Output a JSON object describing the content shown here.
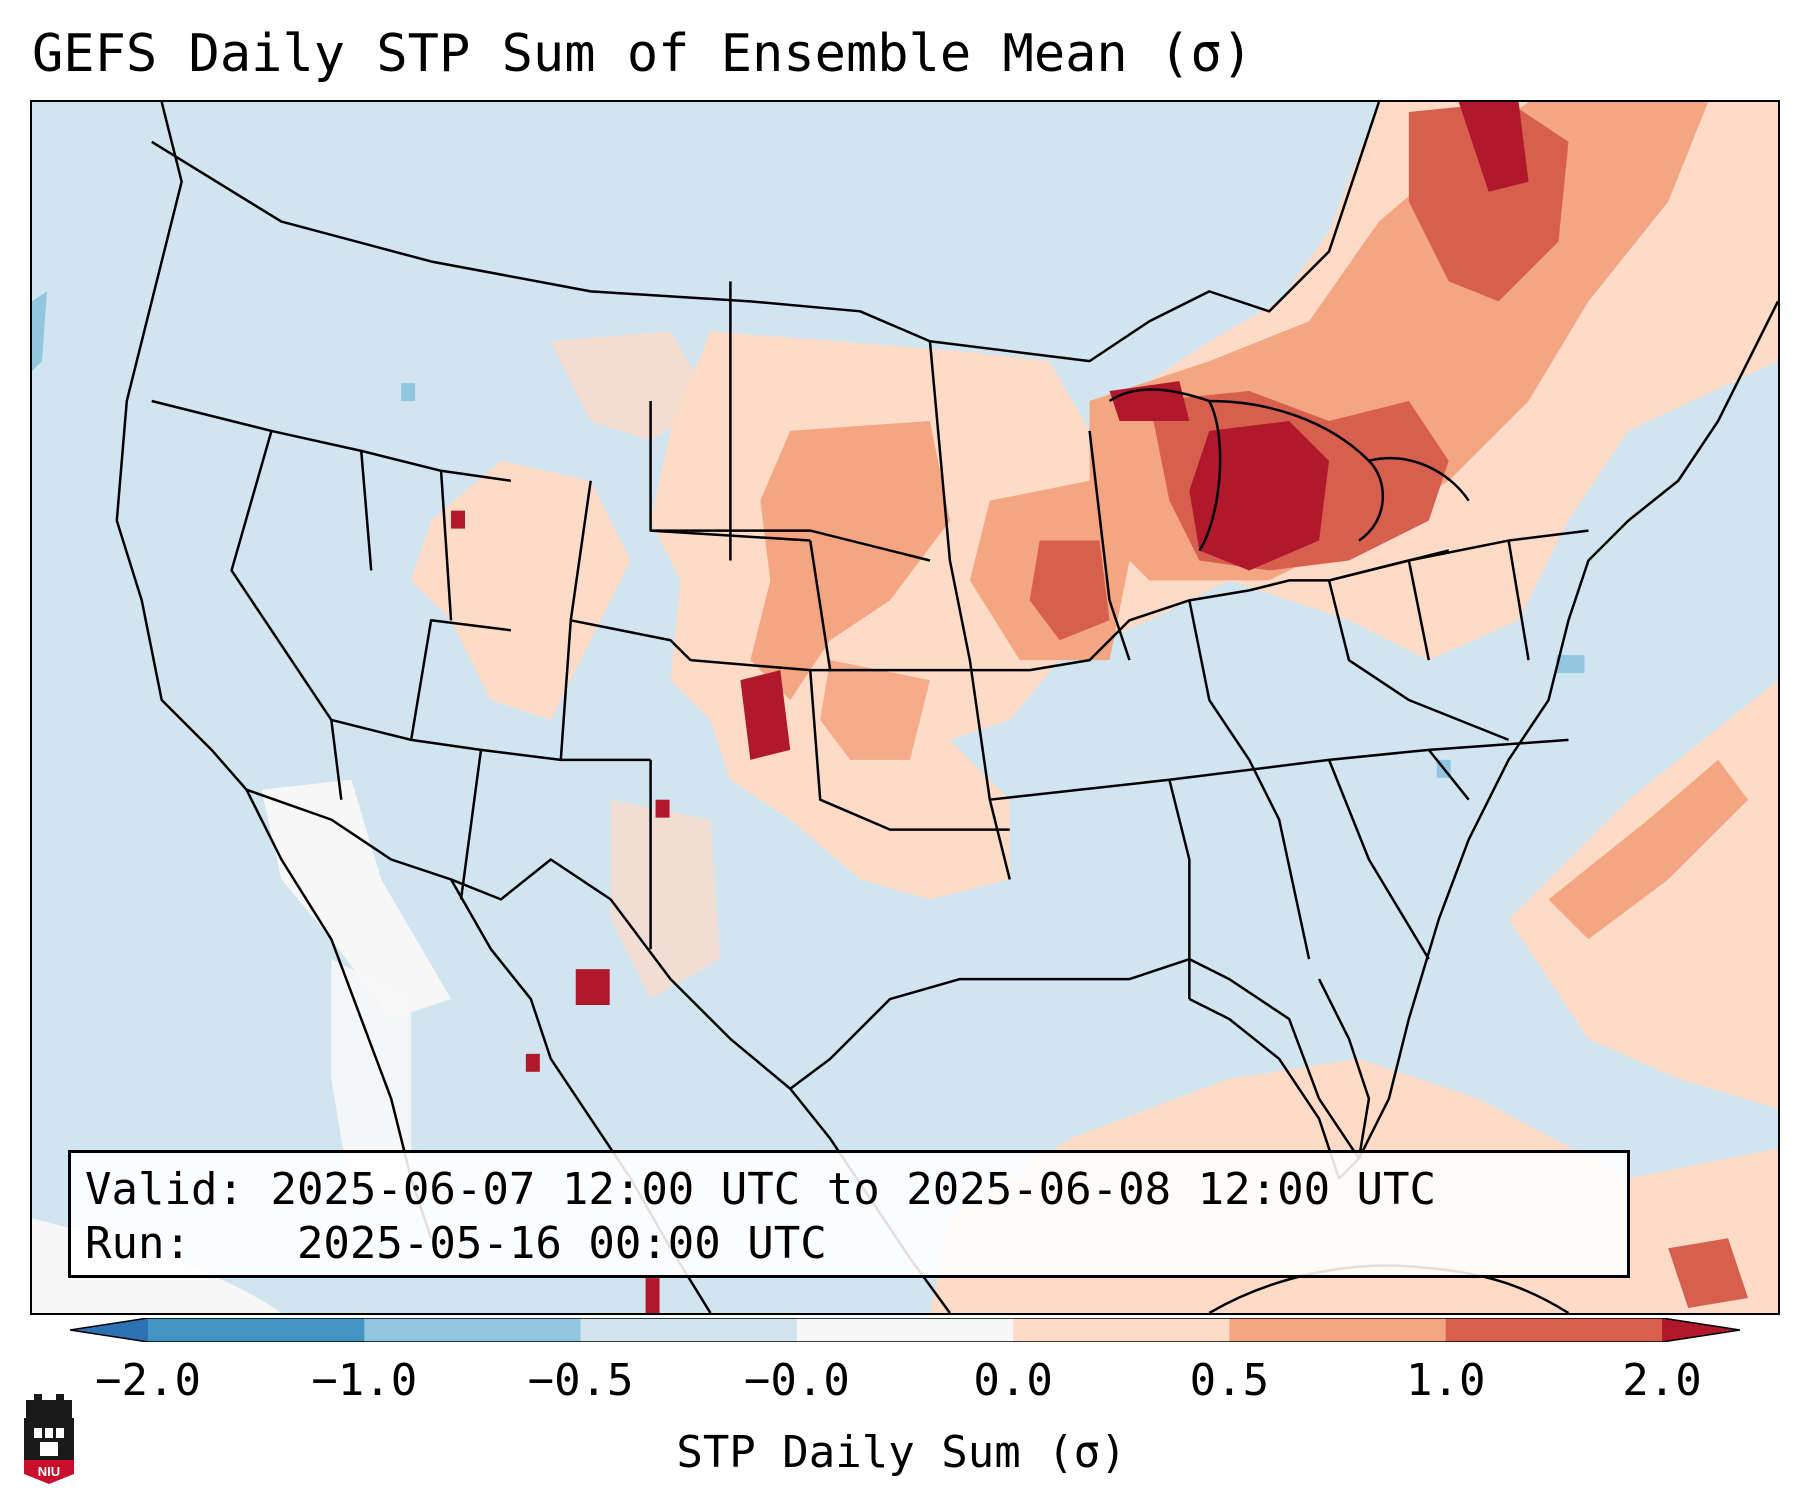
{
  "title": "GEFS Daily STP Sum of Ensemble Mean (σ)",
  "info": {
    "valid_label": "Valid:",
    "valid_value": "2025-06-07 12:00 UTC to 2025-06-08 12:00 UTC",
    "run_label": "Run:",
    "run_value": "2025-05-16 00:00 UTC"
  },
  "colorbar": {
    "label": "STP Daily Sum (σ)",
    "ticks": [
      "−2.0",
      "−1.0",
      "−0.5",
      "−0.0",
      "0.0",
      "0.5",
      "1.0",
      "2.0"
    ],
    "bins": [
      {
        "from": -3.0,
        "to": -2.0,
        "color": "#2c72b3"
      },
      {
        "from": -2.0,
        "to": -1.0,
        "color": "#4393c3"
      },
      {
        "from": -1.0,
        "to": -0.5,
        "color": "#92c5de"
      },
      {
        "from": -0.5,
        "to": -0.0,
        "color": "#d1e5f0"
      },
      {
        "from": -0.0,
        "to": 0.0,
        "color": "#f7f7f7"
      },
      {
        "from": 0.0,
        "to": 0.5,
        "color": "#fddbc7"
      },
      {
        "from": 0.5,
        "to": 1.0,
        "color": "#f4a582"
      },
      {
        "from": 1.0,
        "to": 2.0,
        "color": "#d6604d"
      },
      {
        "from": 2.0,
        "to": 3.0,
        "color": "#b2182b"
      }
    ]
  },
  "map": {
    "background_color": "#d1e5f0",
    "regions": [
      {
        "name": "northern-plains",
        "category": "0.0-0.5",
        "color": "#fddbc7"
      },
      {
        "name": "great-lakes-michigan",
        "category": ">2.0",
        "color": "#b2182b"
      },
      {
        "name": "ontario-quebec",
        "category": "1.0-2.0",
        "color": "#d6604d"
      },
      {
        "name": "eastern-colorado",
        "category": ">2.0",
        "color": "#b2182b"
      },
      {
        "name": "atlantic-offshore",
        "category": "0.5-1.0",
        "color": "#f4a582"
      },
      {
        "name": "gulf-of-mexico",
        "category": "0.0-0.5",
        "color": "#fddbc7"
      },
      {
        "name": "baja-pacific",
        "category": "-0.0-0.0",
        "color": "#f7f7f7"
      }
    ]
  },
  "logo": {
    "text": "NIU"
  }
}
